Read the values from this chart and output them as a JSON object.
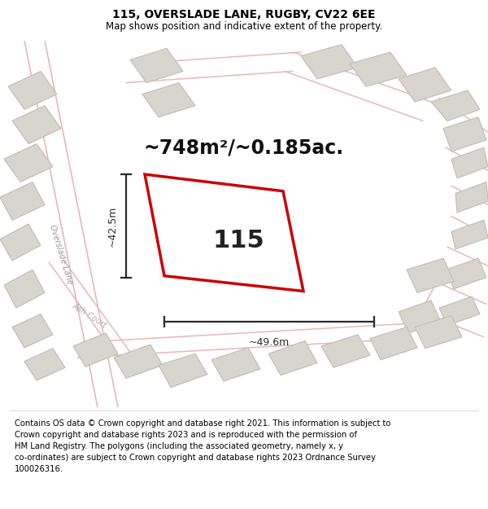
{
  "title": "115, OVERSLADE LANE, RUGBY, CV22 6EE",
  "subtitle": "Map shows position and indicative extent of the property.",
  "footer": "Contains OS data © Crown copyright and database right 2021. This information is subject to\nCrown copyright and database rights 2023 and is reproduced with the permission of\nHM Land Registry. The polygons (including the associated geometry, namely x, y\nco-ordinates) are subject to Crown copyright and database rights 2023 Ordnance Survey\n100026316.",
  "area_label": "~748m²/~0.185ac.",
  "house_number": "115",
  "dim_width": "~49.6m",
  "dim_height": "~42.5m",
  "street_label_1": "Overslade Lane",
  "street_label_2": "Ash Court",
  "map_bg": "#f2f0ee",
  "bldg_fill": "#d8d5cf",
  "bldg_edge": "#c0bcb6",
  "road_color": "#e8b8b8",
  "highlight_fill": "#ffffff",
  "highlight_stroke": "#cc0000",
  "dim_color": "#2a2a2a",
  "title_fontsize": 10,
  "subtitle_fontsize": 8.5,
  "footer_fontsize": 7.2,
  "area_fontsize": 17,
  "num_fontsize": 22,
  "dim_fontsize": 9,
  "street_fontsize": 7
}
